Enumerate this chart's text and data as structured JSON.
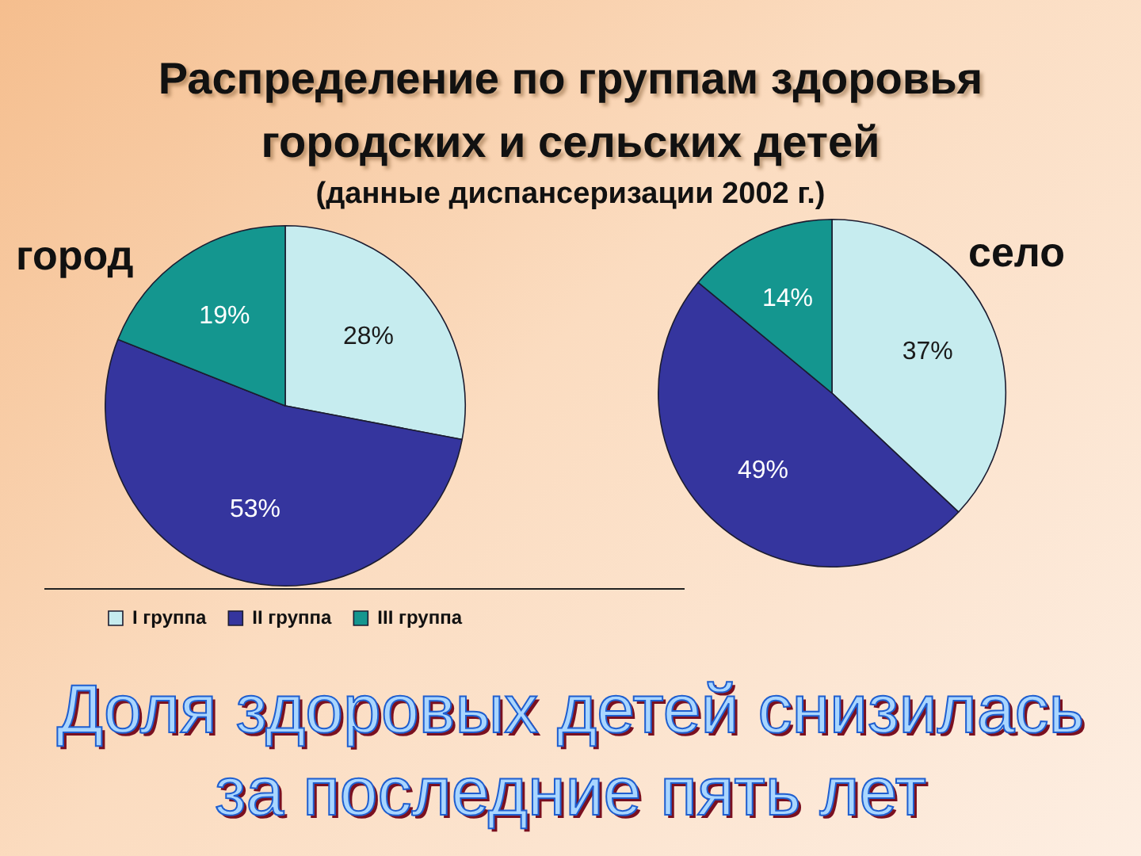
{
  "chart_data": [
    {
      "type": "pie",
      "title": "Распределение по группам здоровья городских и сельских детей",
      "subtitle": "(данные диспансеризации 2002 г.)",
      "annotations": [
        "город",
        "Доля здоровых детей снизилась за последние пять лет"
      ],
      "categories": [
        "I группа",
        "II группа",
        "III группа"
      ],
      "values": [
        28,
        53,
        19
      ],
      "colors": [
        "#c6ecef",
        "#35359e",
        "#14968f"
      ],
      "value_labels": [
        "28%",
        "53%",
        "19%"
      ],
      "legend": "bottom"
    },
    {
      "type": "pie",
      "annotations": [
        "село"
      ],
      "categories": [
        null,
        null,
        null
      ],
      "values": [
        37,
        49,
        14
      ],
      "colors": [
        "#c6ecef",
        "#35359e",
        "#14968f"
      ],
      "value_labels": [
        "37%",
        "49%",
        "14%"
      ]
    }
  ]
}
